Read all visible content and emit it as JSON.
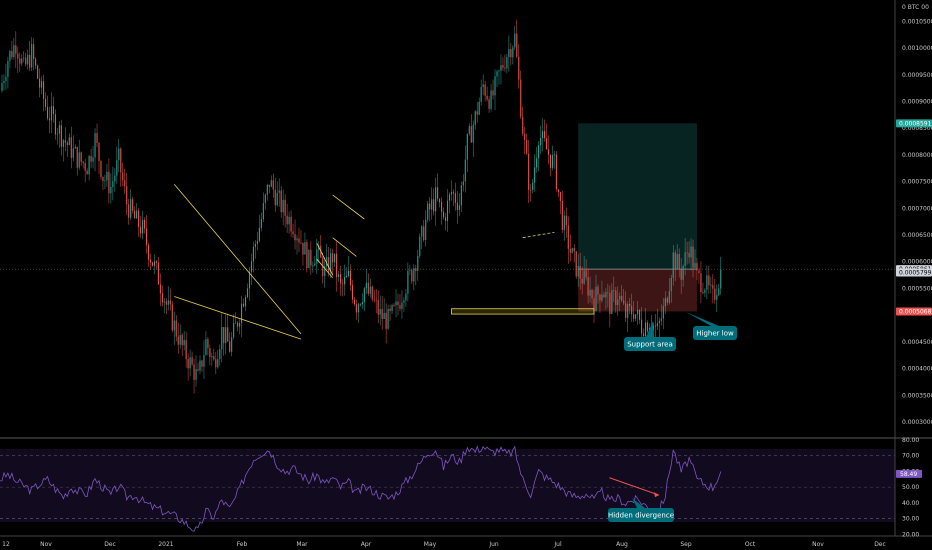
{
  "chart_data": {
    "type": "candlestick",
    "unit_label": "0 BTC 00",
    "price_axis": {
      "range": [
        0.00027,
        0.00109
      ],
      "ticks": [
        "0.0010500",
        "0.0010000",
        "0.0009500",
        "0.0009000",
        "0.0008500",
        "0.0008000",
        "0.0007500",
        "0.0007000",
        "0.0006500",
        "0.0006000",
        "0.0005500",
        "0.0004500",
        "0.0004000",
        "0.0003500",
        "0.0003000"
      ],
      "tick_values": [
        0.00105,
        0.001,
        0.00095,
        0.0009,
        0.00085,
        0.0008,
        0.00075,
        0.0007,
        0.00065,
        0.0006,
        0.00055,
        0.00045,
        0.0004,
        0.00035,
        0.0003
      ]
    },
    "time_axis": {
      "labels": [
        "12",
        "Nov",
        "Dec",
        "2021",
        "Feb",
        "Mar",
        "Apr",
        "May",
        "Jun",
        "Jul",
        "Aug",
        "Sep",
        "Oct",
        "Nov",
        "Dec"
      ]
    },
    "price_badges": [
      {
        "text": "0.0008591",
        "value": 0.0008591,
        "color": "#26a69a"
      },
      {
        "text": "0.0005861",
        "value": 0.0005861,
        "color": "#d1d4dc"
      },
      {
        "text": "0.0005799",
        "value": 0.0005799,
        "color": "#d1d4dc"
      },
      {
        "text": "0.0005068",
        "value": 0.0005068,
        "color": "#ef5350"
      }
    ],
    "close_path": [
      0.00092,
      0.00098,
      0.00101,
      0.00096,
      0.00099,
      0.00093,
      0.00088,
      0.00086,
      0.00083,
      0.00081,
      0.00079,
      0.00078,
      0.00083,
      0.00076,
      0.00074,
      0.00079,
      0.00071,
      0.00068,
      0.00066,
      0.00061,
      0.00057,
      0.00052,
      0.00048,
      0.00044,
      0.00041,
      0.00038,
      0.00045,
      0.00041,
      0.00047,
      0.00044,
      0.00049,
      0.00055,
      0.00062,
      0.00068,
      0.00075,
      0.00072,
      0.00069,
      0.00067,
      0.00064,
      0.0006,
      0.00062,
      0.00058,
      0.00061,
      0.00055,
      0.00057,
      0.00052,
      0.00055,
      0.00053,
      0.0005,
      0.00049,
      0.00051,
      0.00055,
      0.00058,
      0.00063,
      0.00069,
      0.00072,
      0.00068,
      0.00073,
      0.00071,
      0.00082,
      0.00087,
      0.00093,
      0.0009,
      0.00095,
      0.00099,
      0.00102,
      0.00085,
      0.00072,
      0.00084,
      0.00081,
      0.00078,
      0.00068,
      0.00062,
      0.00058,
      0.00056,
      0.00053,
      0.00055,
      0.00052,
      0.00054,
      0.0005,
      0.00051,
      0.00048,
      0.00049,
      0.00047,
      0.00052,
      0.00061,
      0.00058,
      0.00063,
      0.00057,
      0.00056,
      0.00053,
      0.00058
    ],
    "x_range": [
      0,
      91
    ],
    "x_plot_end": 113,
    "patterns": [
      {
        "kind": "wedge",
        "color": "#e6d34a",
        "upper": [
          [
            22,
            0.000745
          ],
          [
            38,
            0.000465
          ]
        ],
        "lower": [
          [
            22,
            0.000535
          ],
          [
            38,
            0.000455
          ]
        ]
      },
      {
        "kind": "flag",
        "color": "#e6d34a",
        "upper": [
          [
            40,
            0.000635
          ],
          [
            42,
            0.000575
          ]
        ],
        "lower": [
          [
            40,
            0.000605
          ],
          [
            42,
            0.00057
          ]
        ]
      },
      {
        "kind": "flag",
        "color": "#e6d34a",
        "upper": [
          [
            42,
            0.000725
          ],
          [
            46,
            0.00068
          ]
        ],
        "lower": [
          [
            42,
            0.000645
          ],
          [
            45,
            0.00061
          ]
        ]
      }
    ],
    "divergence_line": {
      "points": [
        [
          66,
          0.000645
        ],
        [
          70,
          0.000655
        ]
      ],
      "color": "#e6d34a"
    },
    "support_area": {
      "x": [
        57,
        75
      ],
      "y": [
        0.000502,
        0.000512
      ],
      "color": "#e6d34a"
    },
    "trade": {
      "x": [
        73,
        88
      ],
      "entry": 0.0005861,
      "target": 0.0008591,
      "stop": 0.0005068,
      "profit_color": "#26a69a",
      "loss_color": "#ef5350"
    },
    "current_price": 0.0005861,
    "annotations": [
      {
        "text": "Support area",
        "x": 66,
        "y": 0.000475
      },
      {
        "text": "Higher low",
        "x": 76,
        "y": 0.000495
      },
      {
        "text": "Hidden divergence",
        "x": 67,
        "y": 27
      }
    ],
    "rsi": {
      "range": [
        19,
        80
      ],
      "ticks": [
        "80.00",
        "70.00",
        "60.00",
        "50.00",
        "40.00",
        "30.00",
        "20.00"
      ],
      "tick_values": [
        80,
        70,
        60,
        50,
        40,
        30,
        20
      ],
      "upper_band": 70,
      "lower_band": 30,
      "mid": 50,
      "current": 58.49,
      "current_label": "58.49",
      "line_color": "#7e57c2",
      "values": [
        55,
        58,
        54,
        51,
        48,
        52,
        55,
        49,
        44,
        50,
        47,
        46,
        55,
        50,
        45,
        51,
        44,
        45,
        41,
        38,
        36,
        34,
        32,
        29,
        25,
        22,
        35,
        31,
        42,
        36,
        46,
        58,
        68,
        72,
        74,
        65,
        60,
        62,
        58,
        54,
        58,
        52,
        56,
        50,
        53,
        46,
        50,
        48,
        45,
        43,
        46,
        52,
        58,
        65,
        72,
        74,
        63,
        70,
        66,
        76,
        73,
        76,
        72,
        74,
        71,
        73,
        55,
        46,
        60,
        56,
        53,
        49,
        45,
        44,
        46,
        42,
        47,
        41,
        43,
        40,
        42,
        41,
        36,
        32,
        45,
        74,
        60,
        68,
        55,
        52,
        50,
        60
      ],
      "divergence_arrow": {
        "from": [
          82,
          56
        ],
        "to": [
          88,
          45
        ],
        "color": "#ef5350"
      }
    }
  }
}
